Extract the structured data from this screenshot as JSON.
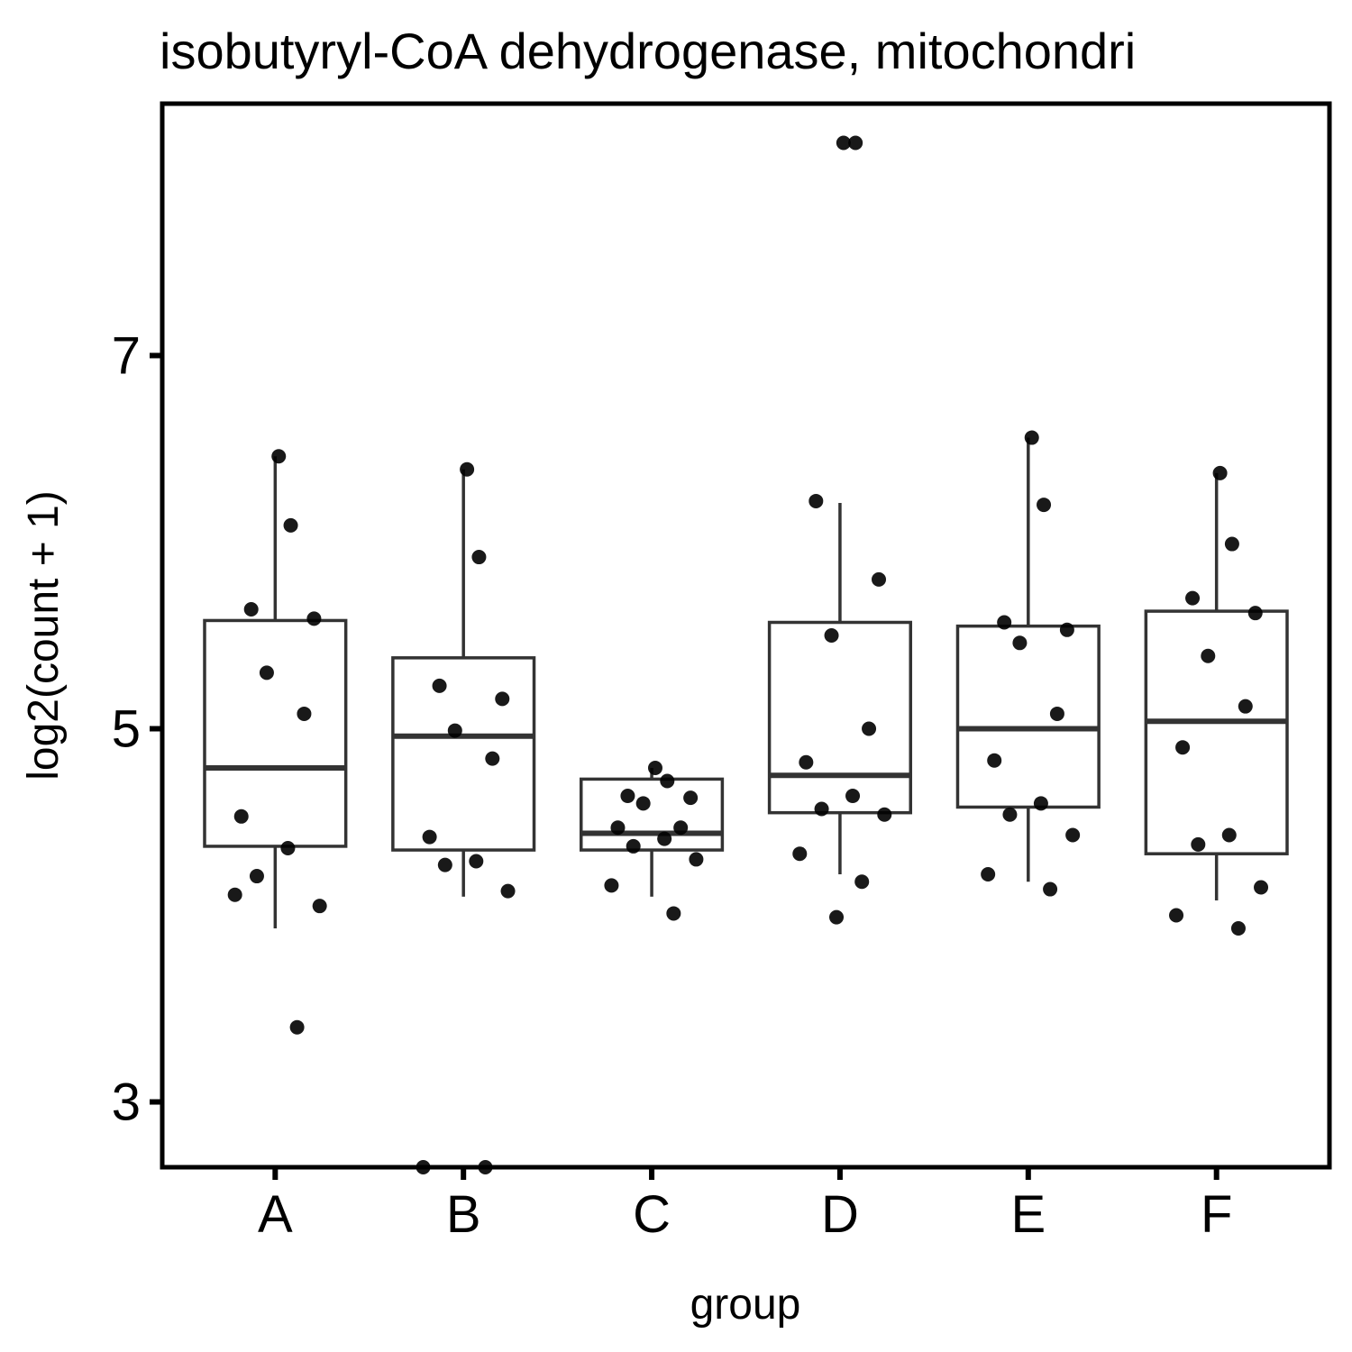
{
  "chart_data": {
    "type": "box",
    "title": "isobutyryl-CoA dehydrogenase, mitochondri",
    "xlabel": "group",
    "ylabel": "log2(count + 1)",
    "ylim": [
      2.65,
      8.35
    ],
    "yticks": [
      3,
      5,
      7
    ],
    "grid": false,
    "legend": "none",
    "categories": [
      "A",
      "B",
      "C",
      "D",
      "E",
      "F"
    ],
    "boxes": [
      {
        "group": "A",
        "whisker_low": 3.93,
        "q1": 4.37,
        "median": 4.79,
        "q3": 5.58,
        "whisker_high": 6.46
      },
      {
        "group": "B",
        "whisker_low": 4.1,
        "q1": 4.35,
        "median": 4.96,
        "q3": 5.38,
        "whisker_high": 6.39
      },
      {
        "group": "C",
        "whisker_low": 4.1,
        "q1": 4.35,
        "median": 4.44,
        "q3": 4.73,
        "whisker_high": 4.79
      },
      {
        "group": "D",
        "whisker_low": 4.22,
        "q1": 4.55,
        "median": 4.75,
        "q3": 5.57,
        "whisker_high": 6.21
      },
      {
        "group": "E",
        "whisker_low": 4.18,
        "q1": 4.58,
        "median": 5.0,
        "q3": 5.55,
        "whisker_high": 6.56
      },
      {
        "group": "F",
        "whisker_low": 4.08,
        "q1": 4.33,
        "median": 5.04,
        "q3": 5.63,
        "whisker_high": 6.37
      }
    ],
    "points": [
      {
        "group": "A",
        "values": [
          6.46,
          6.09,
          5.64,
          5.59,
          5.3,
          5.08,
          4.53,
          4.36,
          4.21,
          4.05,
          4.11,
          3.4
        ]
      },
      {
        "group": "B",
        "values": [
          6.39,
          5.92,
          5.23,
          5.16,
          4.99,
          4.84,
          4.42,
          4.29,
          4.27,
          4.13,
          2.65,
          2.65
        ]
      },
      {
        "group": "C",
        "values": [
          4.79,
          4.72,
          4.64,
          4.63,
          4.6,
          4.47,
          4.47,
          4.41,
          4.37,
          4.3,
          4.16,
          4.01
        ]
      },
      {
        "group": "D",
        "values": [
          8.14,
          8.14,
          6.22,
          5.8,
          5.5,
          5.0,
          4.82,
          4.64,
          4.57,
          4.54,
          4.33,
          4.18,
          3.99
        ]
      },
      {
        "group": "E",
        "values": [
          6.56,
          6.2,
          5.57,
          5.53,
          5.46,
          5.08,
          4.83,
          4.6,
          4.54,
          4.43,
          4.22,
          4.14
        ]
      },
      {
        "group": "F",
        "values": [
          6.37,
          5.99,
          5.7,
          5.62,
          5.39,
          5.12,
          4.9,
          4.43,
          4.38,
          4.15,
          4.0,
          3.93
        ]
      }
    ],
    "colors": {
      "box": "#333333",
      "point": "#000000",
      "frame": "#000000"
    }
  }
}
